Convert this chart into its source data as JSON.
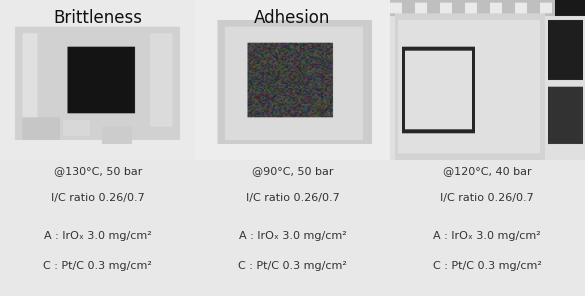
{
  "background_color": "#e8e8e8",
  "title_brittleness": "Brittleness",
  "title_adhesion": "Adhesion",
  "title_fontsize": 12,
  "panels": [
    {
      "label1": "@130°C, 50 bar",
      "label2": "I/C ratio 0.26/0.7",
      "label3": "A : IrOₓ 3.0 mg/cm²",
      "label4": "C : Pt/C 0.3 mg/cm²"
    },
    {
      "label1": "@90°C, 50 bar",
      "label2": "I/C ratio 0.26/0.7",
      "label3": "A : IrOₓ 3.0 mg/cm²",
      "label4": "C : Pt/C 0.3 mg/cm²"
    },
    {
      "label1": "@120°C, 40 bar",
      "label2": "I/C ratio 0.26/0.7",
      "label3": "A : IrOₓ 3.0 mg/cm²",
      "label4": "C : Pt/C 0.3 mg/cm²"
    }
  ],
  "text_fontsize": 8.0,
  "text_color": "#333333"
}
